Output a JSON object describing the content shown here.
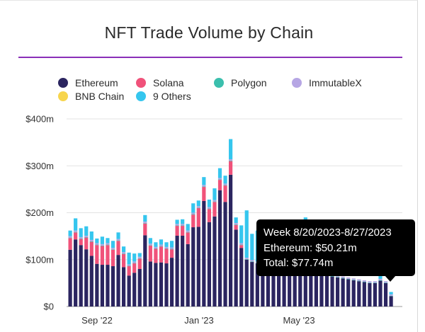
{
  "chart_data": {
    "type": "bar",
    "stacked": true,
    "title": "NFT Trade Volume by Chain",
    "unit": "$m",
    "ylim": [
      0,
      400
    ],
    "yticks": [
      "$400m",
      "$300m",
      "$200m",
      "$100m",
      "$0"
    ],
    "xticks": [
      "Sep '22",
      "Jan '23",
      "May '23"
    ],
    "grid": true,
    "legend_position": "top",
    "legend": [
      {
        "name": "Ethereum",
        "color": "#2b2560"
      },
      {
        "name": "Solana",
        "color": "#f0527a"
      },
      {
        "name": "Polygon",
        "color": "#3bbfad"
      },
      {
        "name": "ImmutableX",
        "color": "#b6a6e4"
      },
      {
        "name": "BNB Chain",
        "color": "#f7d54d"
      },
      {
        "name": "9 Others",
        "color": "#35c6ee"
      }
    ],
    "series": [
      {
        "name": "Ethereum",
        "color": "#2b2560",
        "values": [
          121,
          143,
          131,
          122,
          108,
          91,
          89,
          89,
          86,
          110,
          84,
          66,
          72,
          80,
          152,
          96,
          93,
          94,
          92,
          104,
          151,
          151,
          133,
          169,
          170,
          225,
          180,
          192,
          248,
          223,
          281,
          164,
          125,
          100,
          95,
          92,
          88,
          86,
          84,
          82,
          80,
          78,
          75,
          73,
          72,
          70,
          68,
          67,
          66,
          64,
          62,
          60,
          58,
          56,
          54,
          52,
          50,
          50,
          55,
          50,
          22
        ]
      },
      {
        "name": "Solana",
        "color": "#f0527a",
        "values": [
          25,
          15,
          13,
          25,
          30,
          40,
          40,
          42,
          35,
          30,
          28,
          20,
          20,
          22,
          25,
          34,
          30,
          34,
          31,
          18,
          21,
          21,
          25,
          27,
          40,
          30,
          28,
          31,
          22,
          35,
          29,
          10,
          6,
          0,
          0,
          0,
          0,
          0,
          0,
          0,
          0,
          0,
          0,
          0,
          0,
          0,
          0,
          0,
          0,
          0,
          0,
          0,
          0,
          0,
          0,
          0,
          0,
          0,
          0,
          0,
          0
        ]
      },
      {
        "name": "Polygon",
        "color": "#3bbfad",
        "values": [
          1,
          1,
          1,
          1,
          1,
          1,
          1,
          1,
          1,
          1,
          1,
          1,
          1,
          1,
          1,
          1,
          1,
          1,
          1,
          1,
          1,
          1,
          1,
          1,
          1,
          1,
          1,
          1,
          1,
          1,
          1,
          1,
          1,
          1,
          1,
          1,
          1,
          1,
          1,
          1,
          1,
          1,
          1,
          1,
          1,
          1,
          1,
          1,
          1,
          1,
          1,
          1,
          1,
          1,
          1,
          1,
          1,
          1,
          1,
          1,
          1
        ]
      },
      {
        "name": "ImmutableX",
        "color": "#b6a6e4",
        "values": [
          3,
          3,
          3,
          3,
          3,
          3,
          3,
          3,
          3,
          3,
          3,
          3,
          3,
          3,
          3,
          3,
          3,
          3,
          3,
          3,
          3,
          3,
          3,
          3,
          3,
          3,
          3,
          3,
          3,
          3,
          3,
          3,
          3,
          3,
          3,
          3,
          3,
          3,
          3,
          3,
          3,
          3,
          3,
          3,
          3,
          3,
          3,
          3,
          3,
          3,
          3,
          3,
          3,
          3,
          3,
          3,
          3,
          3,
          3,
          3,
          3
        ]
      },
      {
        "name": "BNB Chain",
        "color": "#f7d54d",
        "values": [
          0,
          0,
          0,
          0,
          0,
          0,
          0,
          0,
          0,
          0,
          0,
          0,
          0,
          0,
          0,
          0,
          0,
          0,
          0,
          0,
          0,
          0,
          0,
          0,
          0,
          0,
          0,
          0,
          0,
          0,
          0,
          0,
          0,
          0,
          0,
          0,
          0,
          0,
          0,
          0,
          0,
          0,
          0,
          0,
          0,
          0,
          0,
          0,
          0,
          0,
          0,
          0,
          0,
          0,
          0,
          0,
          0,
          0,
          0,
          0,
          0
        ]
      },
      {
        "name": "9 Others",
        "color": "#35c6ee",
        "values": [
          12,
          26,
          19,
          20,
          18,
          10,
          16,
          11,
          15,
          14,
          12,
          25,
          17,
          8,
          14,
          12,
          10,
          11,
          10,
          14,
          9,
          10,
          14,
          20,
          12,
          17,
          16,
          25,
          21,
          17,
          43,
          12,
          38,
          101,
          56,
          66,
          0,
          0,
          0,
          0,
          0,
          0,
          0,
          0,
          114,
          60,
          0,
          0,
          0,
          0,
          0,
          0,
          0,
          0,
          0,
          0,
          0,
          0,
          9,
          0,
          5
        ]
      }
    ],
    "tooltip": {
      "lines": [
        "Week 8/20/2023-8/27/2023",
        "Ethereum: $50.21m",
        "Total: $77.74m"
      ]
    }
  }
}
